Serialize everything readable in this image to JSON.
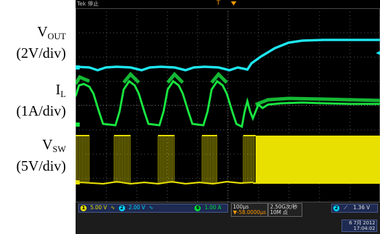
{
  "labels": {
    "vout": {
      "main": "V",
      "sub": "OUT",
      "scale": "(2V/div)"
    },
    "il": {
      "main": "I",
      "sub": "L",
      "scale": "(1A/div)"
    },
    "vsw": {
      "main": "V",
      "sub": "SW",
      "scale": "(5V/div)"
    }
  },
  "status": {
    "text": "Tek 停止",
    "trigger_marker": "T"
  },
  "channels": {
    "ch1": {
      "num": "1",
      "scale": "5.00 V",
      "color": "#e8e000"
    },
    "ch2": {
      "num": "2",
      "scale": "2.00 V",
      "color": "#00d8ff"
    },
    "ch6": {
      "num": "6",
      "scale": "1.00 A",
      "color": "#00e040"
    }
  },
  "timebase": {
    "scale": "100μs",
    "delay": "▼-58.0000μs"
  },
  "sampling": {
    "rate": "2.50G次/秒",
    "record": "10M 点"
  },
  "trigger": {
    "channel": "2",
    "slope": "⟋",
    "level": "1.36 V"
  },
  "datetime": {
    "date": "6 7月 2012",
    "time": "17:04:02"
  },
  "colors": {
    "vout": "#1ee6f0",
    "il": "#19e641",
    "vsw": "#e8e000",
    "grid": "#5a5a5a"
  }
}
